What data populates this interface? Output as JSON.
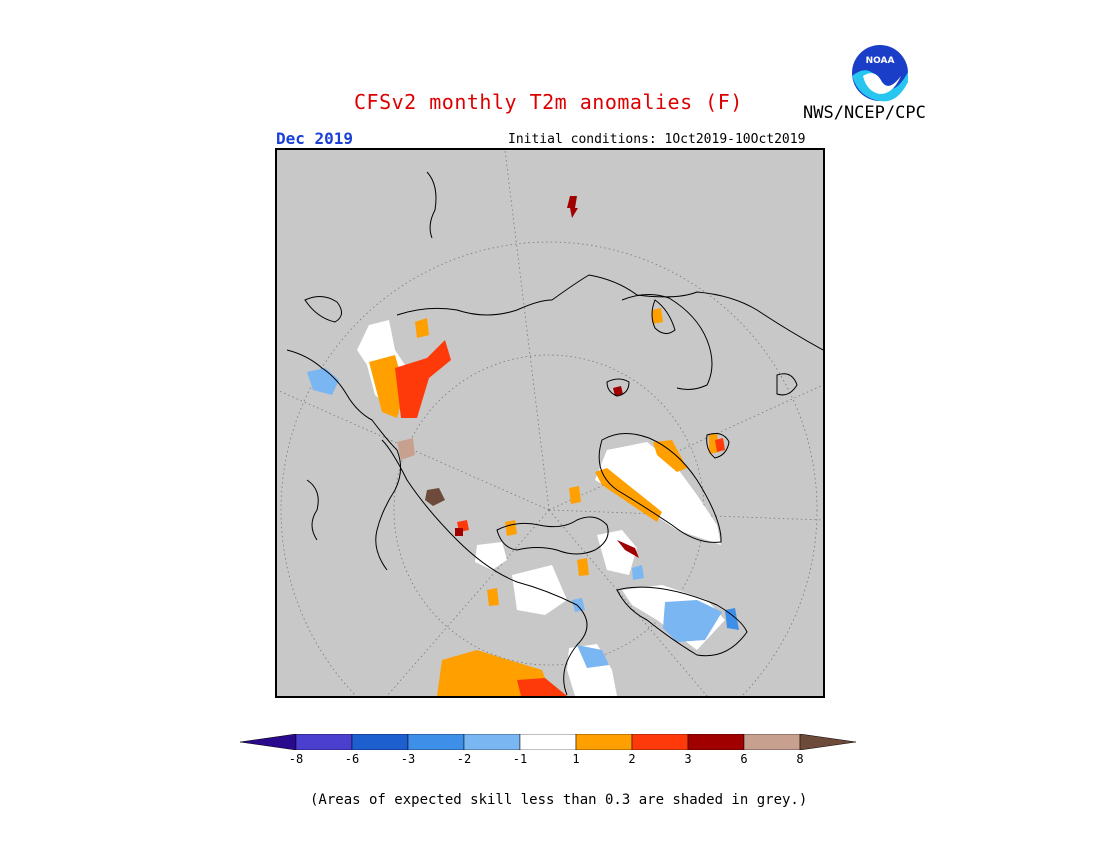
{
  "header": {
    "title": "CFSv2 monthly T2m anomalies (F)",
    "agency": "NWS/NCEP/CPC",
    "logo_text": "NOAA",
    "month": "Dec 2019",
    "initial_conditions": "Initial conditions: 1Oct2019-10Oct2019"
  },
  "colors": {
    "title": "#dd0000",
    "month": "#1a3fd6",
    "map_background": "#c8c8c8",
    "coastline": "#000000",
    "graticule": "#888888"
  },
  "colorbar": {
    "ticks": [
      "-8",
      "-6",
      "-3",
      "-2",
      "-1",
      "1",
      "2",
      "3",
      "6",
      "8"
    ],
    "bins": [
      {
        "range": "< -8",
        "color": "#2a0a8c"
      },
      {
        "range": "-8 to -6",
        "color": "#4a3fcf"
      },
      {
        "range": "-6 to -3",
        "color": "#1e5fd0"
      },
      {
        "range": "-3 to -2",
        "color": "#3d8fe8"
      },
      {
        "range": "-2 to -1",
        "color": "#7ab6f2"
      },
      {
        "range": "-1 to 1",
        "color": "#ffffff"
      },
      {
        "range": "1 to 2",
        "color": "#ff9f00"
      },
      {
        "range": "2 to 3",
        "color": "#ff3a0a"
      },
      {
        "range": "3 to 6",
        "color": "#a00000"
      },
      {
        "range": "6 to 8",
        "color": "#c8a090"
      },
      {
        "range": "> 8",
        "color": "#6e4a3a"
      }
    ]
  },
  "map": {
    "projection": "north polar stereographic",
    "graticule": "dotted"
  },
  "footnote": "(Areas of expected skill less than 0.3 are shaded in grey.)"
}
